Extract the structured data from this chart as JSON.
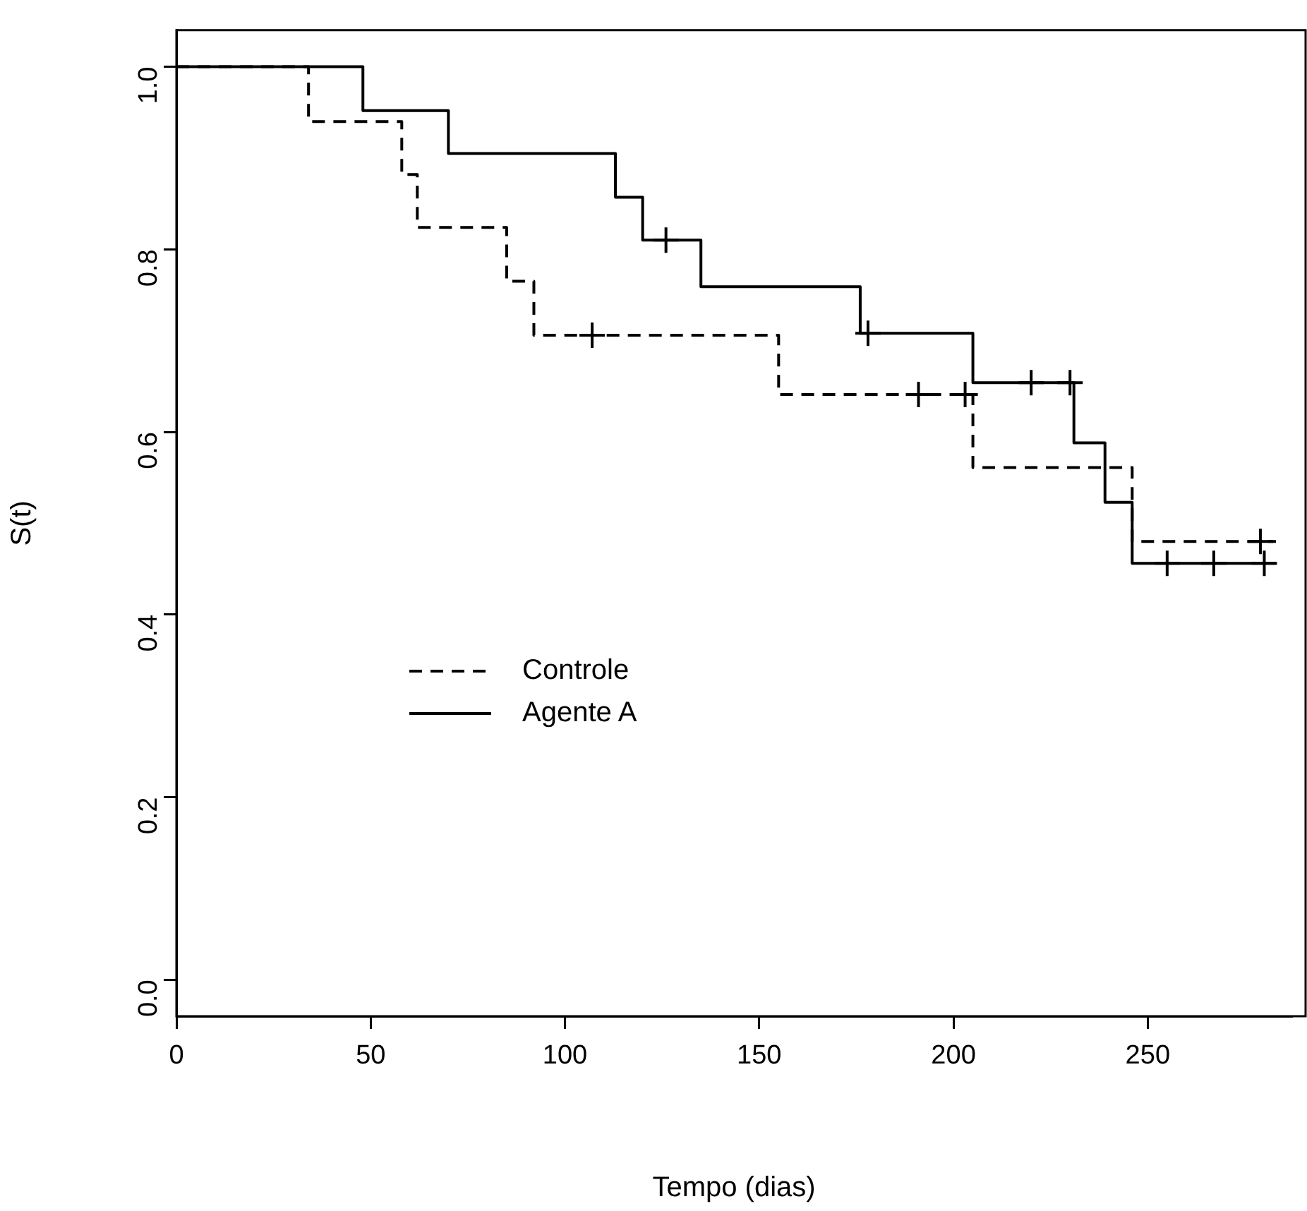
{
  "chart_data": {
    "type": "step",
    "xlabel": "Tempo (dias)",
    "ylabel": "S(t)",
    "xlim": [
      0,
      287
    ],
    "xticks": [
      0,
      50,
      100,
      150,
      200,
      250
    ],
    "ylim": [
      -0.04,
      1.04
    ],
    "yticks": [
      {
        "value": 0,
        "label": "0.0"
      },
      0.2,
      0.4,
      0.6,
      0.8,
      {
        "value": 1,
        "label": "1.0"
      }
    ],
    "grid": false,
    "legend": "center left",
    "series": [
      {
        "name": "Controle",
        "color": "#000000",
        "line_style": "dashed",
        "marker": "none",
        "x": [
          0,
          34,
          58,
          62,
          85,
          92,
          155,
          205,
          246,
          283
        ],
        "values": [
          1,
          0.94,
          0.882,
          0.824,
          0.765,
          0.706,
          0.641,
          0.561,
          0.48,
          0.48
        ]
      },
      {
        "name": "Agente A",
        "color": "#000000",
        "line_style": "solid",
        "marker": "none",
        "x": [
          0,
          48,
          70,
          113,
          120,
          135,
          176,
          205,
          231,
          239,
          246,
          283
        ],
        "values": [
          1,
          0.952,
          0.905,
          0.857,
          0.81,
          0.759,
          0.708,
          0.654,
          0.588,
          0.523,
          0.456,
          0.456
        ]
      },
      {
        "type": "scatter",
        "color": "#000000",
        "marker": "cross",
        "x": [
          107,
          191,
          203,
          279
        ],
        "values": [
          0.706,
          0.641,
          0.641,
          0.48
        ]
      },
      {
        "type": "scatter",
        "color": "#000000",
        "marker": "cross",
        "x": [
          126,
          178,
          220,
          230,
          255,
          267,
          280
        ],
        "values": [
          0.81,
          0.708,
          0.654,
          0.654,
          0.456,
          0.456,
          0.456
        ]
      }
    ]
  }
}
